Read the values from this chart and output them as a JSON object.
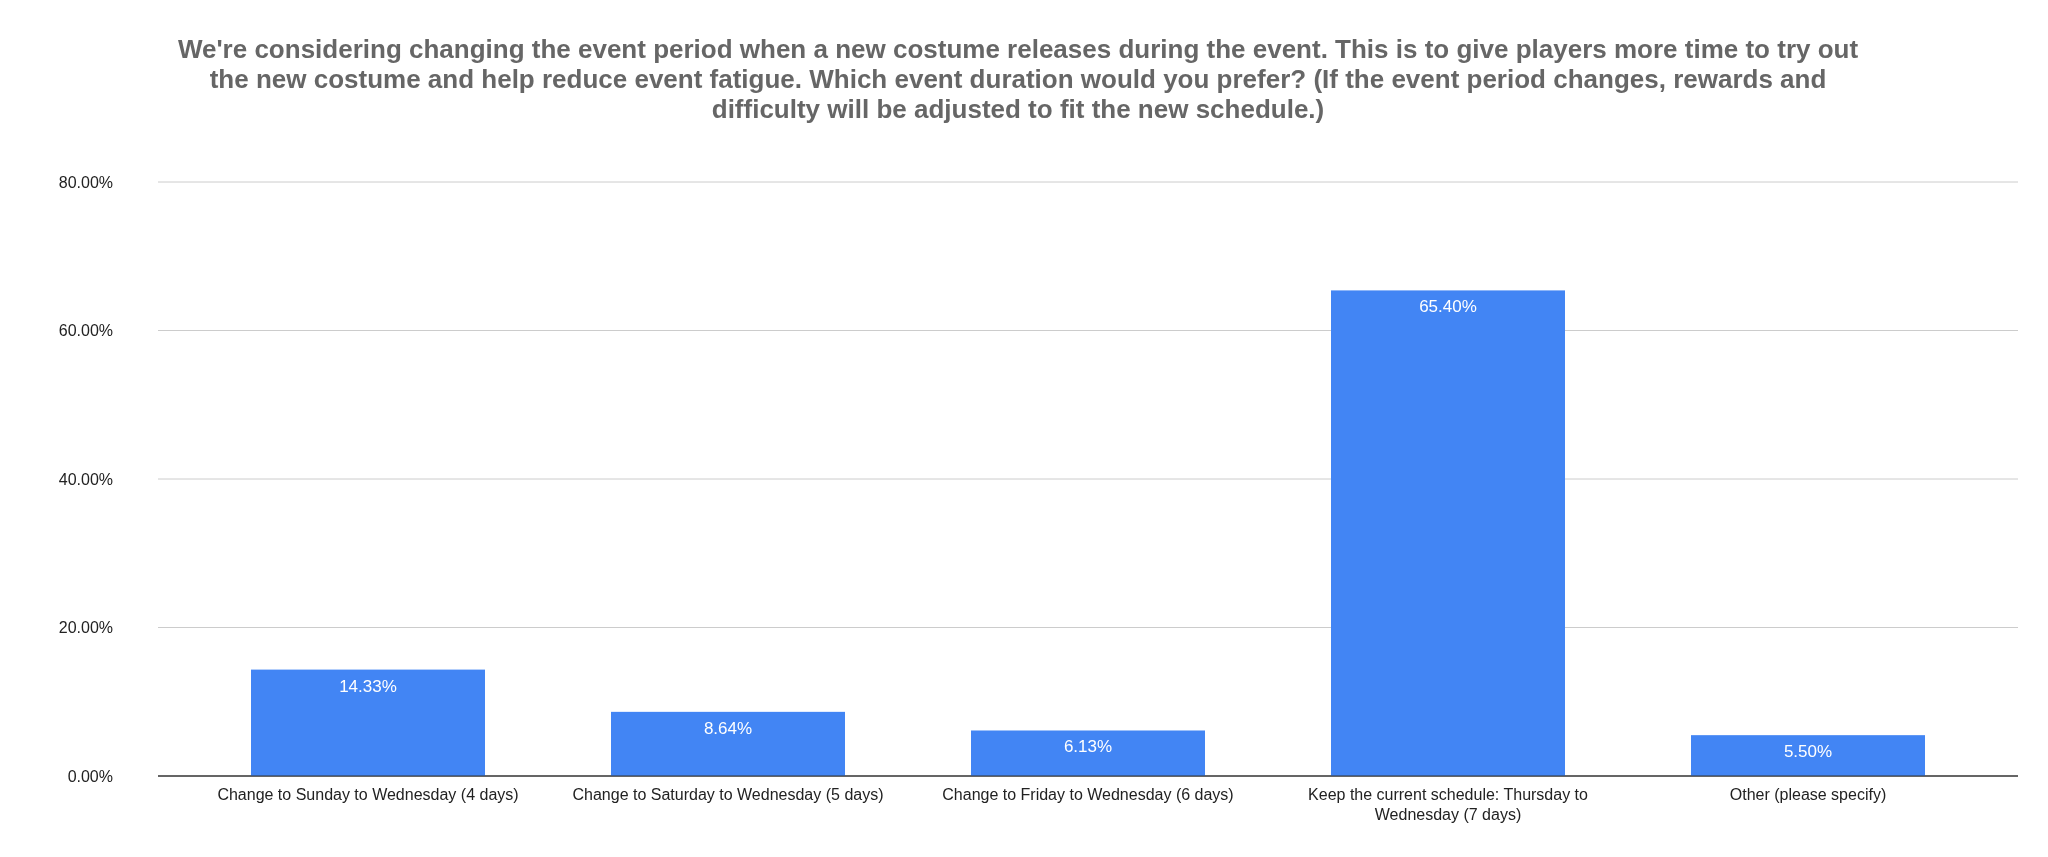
{
  "chart_data": {
    "type": "bar",
    "title": "We're considering changing the event period when a new costume releases during the event. This is to give players more time to try out the new costume and help reduce event fatigue. Which event duration would you prefer? (If the event period changes, rewards and difficulty will be adjusted to fit the new schedule.)",
    "categories": [
      "Change to Sunday to Wednesday (4 days)",
      "Change to Saturday to Wednesday (5 days)",
      "Change to Friday to Wednesday (6 days)",
      "Keep the current schedule: Thursday to Wednesday (7 days)",
      "Other (please specify)"
    ],
    "values": [
      14.33,
      8.64,
      6.13,
      65.4,
      5.5
    ],
    "value_labels": [
      "14.33%",
      "8.64%",
      "6.13%",
      "65.40%",
      "5.50%"
    ],
    "color": "#4285f4",
    "ylim": [
      0,
      80
    ],
    "yticks": [
      {
        "value": 0,
        "label": "0.00%"
      },
      {
        "value": 20,
        "label": "20.00%"
      },
      {
        "value": 40,
        "label": "40.00%"
      },
      {
        "value": 60,
        "label": "60.00%"
      },
      {
        "value": 80,
        "label": "80.00%"
      }
    ],
    "grid": "y"
  }
}
